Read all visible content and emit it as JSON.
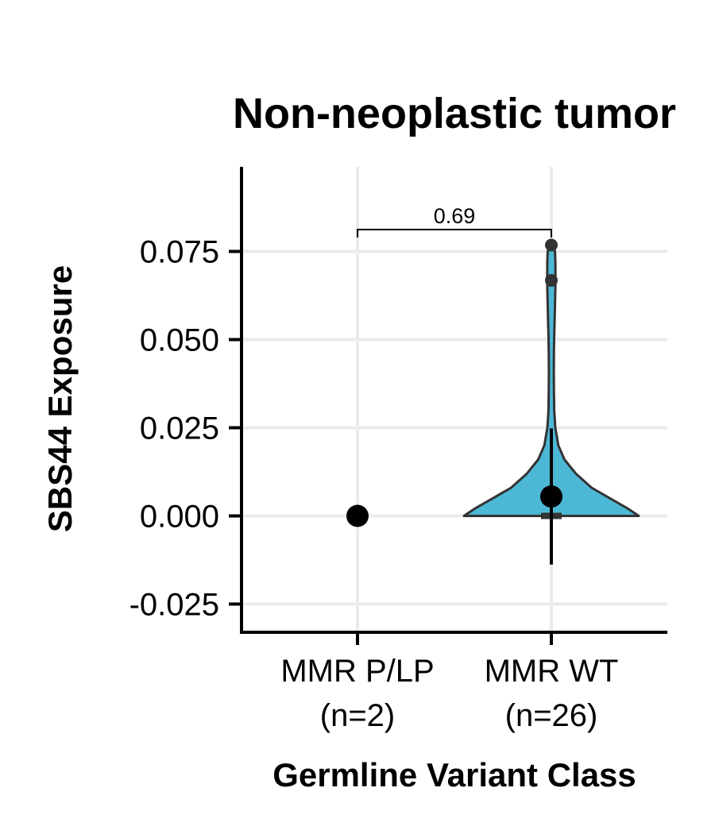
{
  "chart_data": {
    "type": "violin",
    "title": "Non-neoplastic tumor",
    "xlabel": "Germline Variant Class",
    "ylabel": "SBS44 Exposure",
    "ylim": [
      -0.033,
      0.099
    ],
    "yticks": [
      -0.025,
      0.0,
      0.025,
      0.05,
      0.075
    ],
    "ytick_labels": [
      "-0.025",
      "0.000",
      "0.025",
      "0.050",
      "0.075"
    ],
    "grid": true,
    "categories": [
      {
        "label_line1": "MMR P/LP",
        "label_line2": "(n=2)",
        "n": 2,
        "mean": 0.0,
        "sd_low": 0.0,
        "sd_high": 0.0,
        "points": [],
        "violin": null
      },
      {
        "label_line1": "MMR WT",
        "label_line2": "(n=26)",
        "n": 26,
        "mean": 0.0055,
        "sd_low": -0.0138,
        "sd_high": 0.0248,
        "median": 0.0,
        "points": [
          0.0768,
          0.0668
        ],
        "fill_color": "#4db8d6",
        "outline_color": "#333333",
        "violin": {
          "y": [
            0.0,
            0.002,
            0.005,
            0.008,
            0.012,
            0.016,
            0.02,
            0.025,
            0.03,
            0.035,
            0.04,
            0.045,
            0.05,
            0.055,
            0.06,
            0.065,
            0.068,
            0.072,
            0.075,
            0.0775
          ],
          "density": [
            1.0,
            0.88,
            0.67,
            0.46,
            0.28,
            0.15,
            0.08,
            0.045,
            0.033,
            0.03,
            0.028,
            0.029,
            0.032,
            0.037,
            0.042,
            0.046,
            0.047,
            0.046,
            0.042,
            0.0
          ]
        }
      }
    ],
    "comparison": {
      "from": 0,
      "to": 1,
      "label": "0.69",
      "y": 0.0812
    }
  }
}
